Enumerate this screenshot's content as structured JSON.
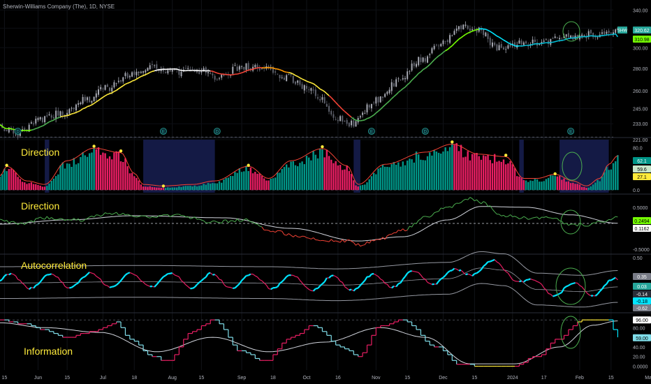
{
  "header": {
    "title": "Sherwin-Williams Company (The), 1D, NYSE"
  },
  "colors": {
    "background": "#000000",
    "bull": "#26a69a",
    "bear": "#e91e63",
    "teal": "#009688",
    "cyan": "#00e5ff",
    "yellow": "#ffeb3b",
    "red": "#f44336",
    "green": "#4caf50",
    "lime": "#76ff03",
    "white": "#d1d4dc",
    "gray": "#787b86",
    "navy": "#1a237e",
    "circle": "#4caf50"
  },
  "x_axis": {
    "labels": [
      "15",
      "Jun",
      "15",
      "Jul",
      "18",
      "Aug",
      "15",
      "Sep",
      "18",
      "Oct",
      "16",
      "Nov",
      "15",
      "Dec",
      "15",
      "2024",
      "17",
      "Feb",
      "15",
      "Mar",
      "15"
    ],
    "range_days": [
      0,
      274
    ],
    "label_days": [
      2,
      17,
      30,
      46,
      60,
      77,
      90,
      108,
      122,
      137,
      151,
      168,
      182,
      198,
      212,
      229,
      243,
      259,
      273,
      290,
      304
    ]
  },
  "chart_data": [
    {
      "type": "candlestick",
      "ticker": "SHW",
      "last_price": "320.62",
      "ma_value": "310.98",
      "ylim": [
        221,
        345
      ],
      "y_ticks": [
        "340.00",
        "320.00",
        "300.00",
        "280.00",
        "260.00",
        "245.00",
        "233.00",
        "221.00"
      ],
      "y_tick_values": [
        340,
        320,
        300,
        280,
        260,
        245,
        233,
        221
      ],
      "log_scale": true,
      "close_keypoints_day": [
        0,
        8,
        18,
        28,
        38,
        48,
        58,
        68,
        78,
        88,
        98,
        108,
        118,
        128,
        138,
        143,
        150,
        158,
        168,
        178,
        188,
        198,
        206,
        214,
        222,
        232,
        242,
        252,
        262,
        272,
        276
      ],
      "close_keypoints_value": [
        230,
        225,
        236,
        242,
        252,
        262,
        274,
        282,
        276,
        278,
        272,
        282,
        280,
        272,
        262,
        254,
        238,
        233,
        252,
        268,
        288,
        304,
        322,
        319,
        300,
        304,
        306,
        310,
        313,
        314,
        320.62
      ],
      "ma_color_segments": [
        "rainbow-up",
        "yellow",
        "red",
        "green",
        "cyan"
      ],
      "event_markers": [
        {
          "day": 8,
          "type": "D"
        },
        {
          "day": 73,
          "type": "E"
        },
        {
          "day": 97,
          "type": "D"
        },
        {
          "day": 166,
          "type": "E"
        },
        {
          "day": 190,
          "type": "D"
        },
        {
          "day": 255,
          "type": "E"
        },
        {
          "day": 284,
          "type": "D"
        }
      ]
    },
    {
      "type": "bar",
      "title": "Direction",
      "ylim": [
        -5,
        95
      ],
      "y_ticks": [
        "80.0",
        "0.0"
      ],
      "y_tick_values": [
        80,
        0
      ],
      "value_labels": [
        "62.1",
        "59.6",
        "27.1"
      ],
      "value_label_levels": [
        62.1,
        59.6,
        27.1
      ],
      "dashed_levels": [
        100,
        0
      ],
      "highlight_ranges_day": [
        [
          20,
          22
        ],
        [
          64,
          96
        ],
        [
          158,
          161
        ],
        [
          232,
          234
        ],
        [
          250,
          272
        ]
      ],
      "peak_days": [
        3,
        42,
        54,
        73,
        111,
        144,
        202,
        226,
        248
      ],
      "peak_values": [
        44,
        80,
        71,
        5,
        44,
        79,
        88,
        63,
        28
      ],
      "wave_keypoints_day": [
        0,
        3,
        12,
        20,
        30,
        42,
        54,
        60,
        64,
        73,
        86,
        96,
        111,
        120,
        130,
        144,
        155,
        160,
        172,
        190,
        202,
        214,
        226,
        234,
        240,
        248,
        256,
        262,
        268,
        272,
        276
      ],
      "wave_keypoints_value": [
        25,
        44,
        15,
        8,
        55,
        80,
        71,
        30,
        8,
        5,
        8,
        15,
        44,
        20,
        55,
        79,
        45,
        8,
        48,
        72,
        88,
        68,
        63,
        20,
        20,
        28,
        15,
        5,
        20,
        48,
        65
      ]
    },
    {
      "type": "line",
      "title": "Direction",
      "ylim": [
        -0.58,
        0.78
      ],
      "y_ticks": [
        "0.5000",
        "-0.5000"
      ],
      "y_tick_values": [
        0.5,
        -0.5
      ],
      "value_labels": [
        "0.2494",
        "0.1162"
      ],
      "value_label_levels": [
        0.2494,
        0.1162
      ],
      "dashed_levels": [
        0.1162
      ],
      "series_keypoints_day": [
        0,
        10,
        20,
        35,
        50,
        65,
        80,
        95,
        110,
        120,
        135,
        145,
        155,
        160,
        170,
        180,
        190,
        200,
        210,
        215,
        225,
        235,
        245,
        255,
        262,
        268,
        276
      ],
      "series_keypoints_value": [
        0.18,
        0.1,
        0.25,
        0.2,
        0.35,
        0.28,
        0.3,
        0.15,
        0.2,
        -0.05,
        -0.2,
        -0.28,
        -0.3,
        -0.4,
        -0.25,
        -0.05,
        0.25,
        0.5,
        0.72,
        0.62,
        0.3,
        0.25,
        0.25,
        0.1,
        0.08,
        0.15,
        0.2494
      ],
      "signal_keypoints_day": [
        0,
        30,
        60,
        100,
        130,
        160,
        180,
        200,
        215,
        235,
        255,
        276
      ],
      "signal_keypoints_value": [
        0.1,
        0.2,
        0.3,
        0.25,
        0.0,
        -0.3,
        -0.2,
        0.2,
        0.52,
        0.5,
        0.32,
        0.12
      ]
    },
    {
      "type": "line",
      "title": "Autocorrelation",
      "ylim": [
        -0.75,
        0.55
      ],
      "y_ticks": [
        "0.50",
        "-0.50"
      ],
      "y_tick_values": [
        0.5,
        -0.5
      ],
      "value_labels": [
        "0.35",
        "0.03",
        "-0.14",
        "-0.18",
        "-0.62"
      ],
      "value_label_levels": [
        0.35,
        0.03,
        -0.14,
        -0.18,
        -0.62
      ],
      "band_upper": 0.22,
      "band_lower": -0.3,
      "band_mid": -0.04,
      "cycle_period_days": 18,
      "cycle_amplitude": 0.28,
      "trend_keypoints_day": [
        0,
        60,
        120,
        150,
        200,
        215,
        225,
        240,
        260,
        276
      ],
      "trend_keypoints_value": [
        -0.05,
        -0.02,
        -0.05,
        -0.1,
        0.05,
        0.3,
        0.25,
        -0.2,
        -0.25,
        -0.14
      ]
    },
    {
      "type": "line",
      "title": "Information",
      "ylim": [
        -5,
        105
      ],
      "y_ticks": [
        "96.00",
        "80.00",
        "59.00",
        "40.00",
        "20.00",
        "0.0000"
      ],
      "y_tick_values": [
        96,
        80,
        59,
        40,
        20,
        0
      ],
      "value_labels": [
        "96.00",
        "59.00"
      ],
      "value_label_levels": [
        96,
        59
      ],
      "dashed_levels": [
        96
      ],
      "step_keypoints_day": [
        0,
        10,
        20,
        30,
        40,
        52,
        58,
        68,
        75,
        85,
        95,
        108,
        118,
        130,
        140,
        152,
        160,
        170,
        180,
        195,
        205,
        215,
        228,
        240,
        248,
        260,
        272,
        276
      ],
      "step_keypoints_value": [
        95,
        88,
        75,
        60,
        70,
        90,
        55,
        20,
        10,
        70,
        95,
        30,
        10,
        60,
        85,
        40,
        20,
        85,
        95,
        40,
        5,
        0,
        0,
        20,
        55,
        96,
        96,
        59
      ],
      "smooth_keypoints_day": [
        0,
        20,
        45,
        70,
        95,
        120,
        145,
        170,
        190,
        210,
        230,
        250,
        265,
        276
      ],
      "smooth_keypoints_value": [
        90,
        80,
        70,
        30,
        60,
        30,
        50,
        80,
        60,
        5,
        5,
        40,
        85,
        94
      ]
    }
  ]
}
